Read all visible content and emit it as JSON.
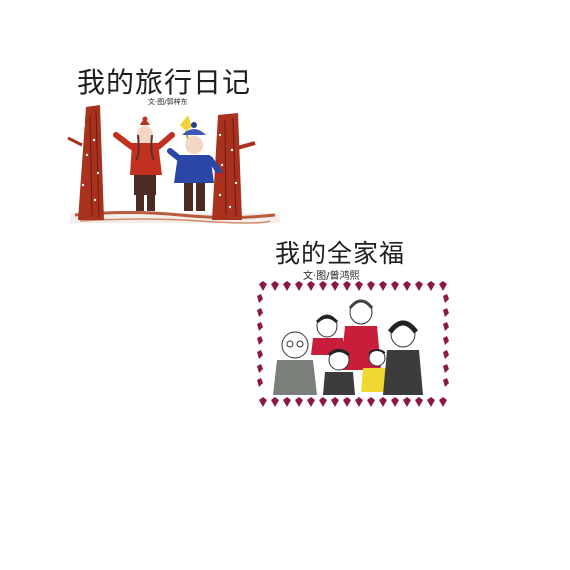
{
  "page": {
    "background": "#ffffff"
  },
  "card_travel": {
    "title": "我的旅行日记",
    "byline": "文·图/郭梓东",
    "icon": "travel-illustration",
    "colors": {
      "tree_trunk": "#a8321e",
      "red_coat": "#c2301f",
      "blue_coat": "#2a47a8",
      "yellow_hat": "#f0d23c"
    }
  },
  "card_family": {
    "title": "我的全家福",
    "byline": "文·图/曾鸿熙",
    "icon": "family-portrait-illustration",
    "colors": {
      "heart_border": "#8c1a3c",
      "gray_shirt": "#7a7f7a",
      "red_shirt": "#c81e3c",
      "yellow_shirt": "#f0d832",
      "dark_shirt": "#3c3c3c"
    }
  }
}
